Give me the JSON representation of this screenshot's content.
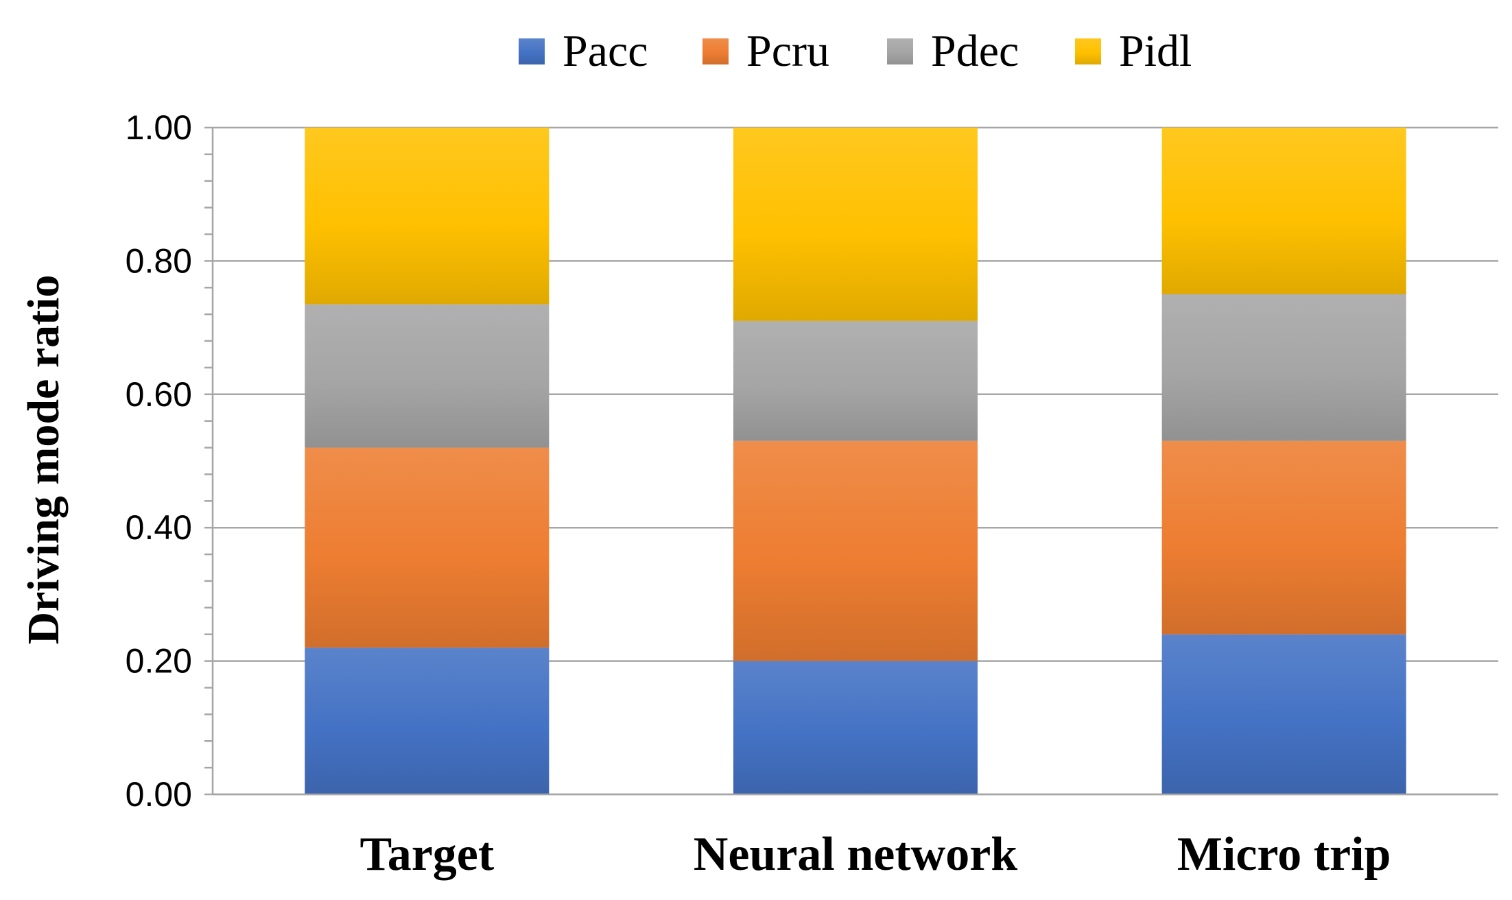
{
  "chart_data": {
    "type": "bar",
    "stacked": true,
    "categories": [
      "Target",
      "Neural network",
      "Micro trip"
    ],
    "series": [
      {
        "name": "Pacc",
        "color": "#4472C4",
        "values": [
          0.22,
          0.2,
          0.24
        ]
      },
      {
        "name": "Pcru",
        "color": "#ED7D31",
        "values": [
          0.3,
          0.33,
          0.29
        ]
      },
      {
        "name": "Pdec",
        "color": "#A5A5A5",
        "values": [
          0.215,
          0.18,
          0.22
        ]
      },
      {
        "name": "Pidl",
        "color": "#FFC000",
        "values": [
          0.265,
          0.29,
          0.25
        ]
      }
    ],
    "yticks": [
      "0.00",
      "0.20",
      "0.40",
      "0.60",
      "0.80",
      "1.00"
    ],
    "ylim": [
      0,
      1
    ],
    "ylabel": "Driving mode ratio",
    "xlabel": "",
    "grid": true,
    "legend_position": "top"
  }
}
